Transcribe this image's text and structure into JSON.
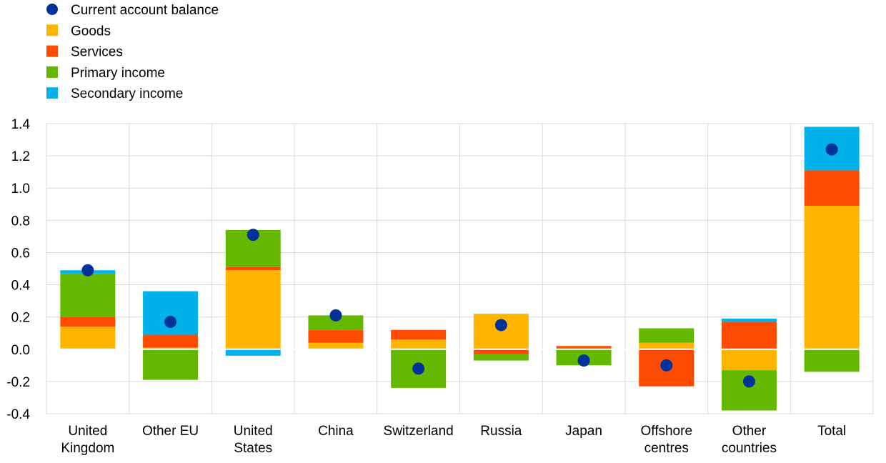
{
  "chart_data": {
    "type": "bar",
    "stacked": true,
    "categories": [
      [
        "United",
        "Kingdom"
      ],
      [
        "Other EU"
      ],
      [
        "United",
        "States"
      ],
      [
        "China"
      ],
      [
        "Switzerland"
      ],
      [
        "Russia"
      ],
      [
        "Japan"
      ],
      [
        "Offshore",
        "centres"
      ],
      [
        "Other",
        "countries"
      ],
      [
        "Total"
      ]
    ],
    "series": [
      {
        "name": "Goods",
        "color": "#ffb400",
        "values": [
          0.14,
          0.01,
          0.49,
          0.04,
          0.06,
          0.22,
          0.0,
          0.04,
          -0.13,
          0.89
        ]
      },
      {
        "name": "Services",
        "color": "#ff4b00",
        "values": [
          0.06,
          0.08,
          0.02,
          0.08,
          0.06,
          -0.03,
          0.02,
          -0.23,
          0.17,
          0.22
        ]
      },
      {
        "name": "Primary income",
        "color": "#65b800",
        "values": [
          0.27,
          -0.19,
          0.23,
          0.09,
          -0.24,
          -0.04,
          -0.1,
          0.09,
          -0.25,
          -0.14
        ]
      },
      {
        "name": "Secondary income",
        "color": "#00b1ea",
        "values": [
          0.02,
          0.27,
          -0.04,
          0.0,
          0.0,
          0.0,
          0.0,
          0.0,
          0.02,
          0.27
        ]
      }
    ],
    "current_account_balance": {
      "name": "Current account balance",
      "color": "#003299",
      "values": [
        0.49,
        0.17,
        0.71,
        0.21,
        -0.12,
        0.15,
        -0.07,
        -0.1,
        -0.2,
        1.24
      ]
    },
    "ylim": [
      -0.4,
      1.4
    ],
    "yticks": [
      "-0.4",
      "-0.2",
      "0.0",
      "0.2",
      "0.4",
      "0.6",
      "0.8",
      "1.0",
      "1.2",
      "1.4"
    ],
    "ytick_values": [
      -0.4,
      -0.2,
      0.0,
      0.2,
      0.4,
      0.6,
      0.8,
      1.0,
      1.2,
      1.4
    ],
    "grid": true,
    "legend_position": "top-left"
  }
}
